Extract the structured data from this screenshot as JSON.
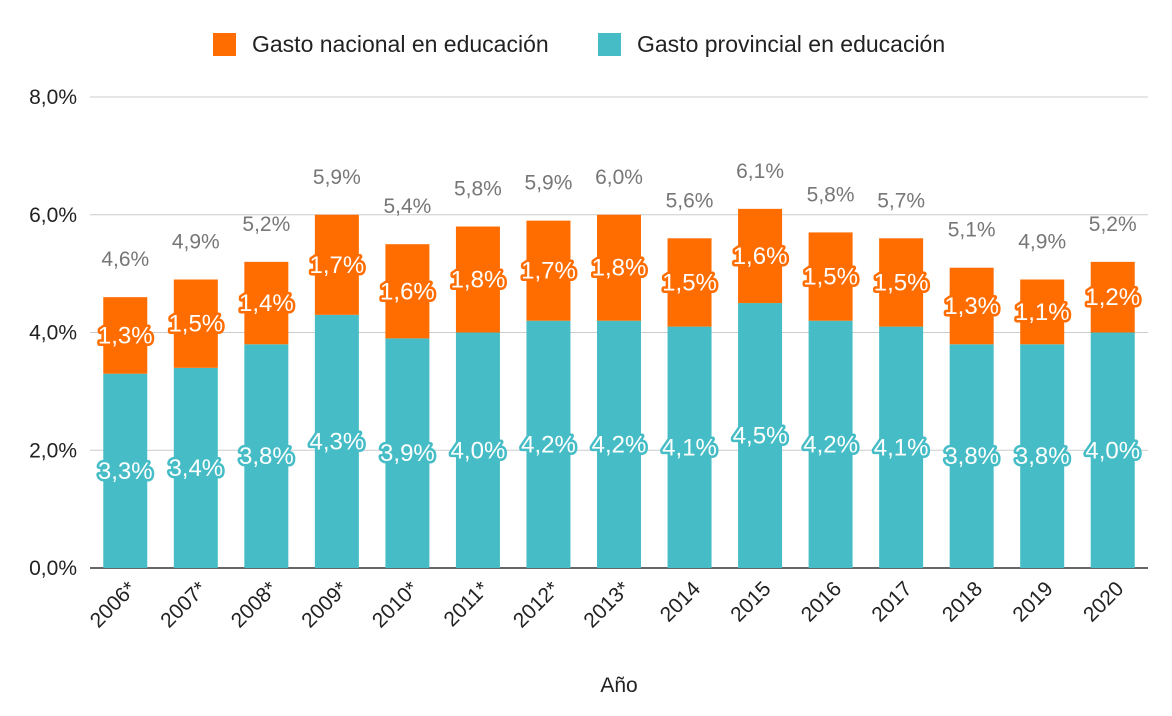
{
  "chart_data": {
    "type": "bar",
    "stacked": true,
    "categories": [
      "2006*",
      "2007*",
      "2008*",
      "2009*",
      "2010*",
      "2011*",
      "2012*",
      "2013*",
      "2014",
      "2015",
      "2016",
      "2017",
      "2018",
      "2019",
      "2020"
    ],
    "series": [
      {
        "name": "Gasto provincial en educación",
        "color": "#46bdc6",
        "values": [
          3.3,
          3.4,
          3.8,
          4.3,
          3.9,
          4.0,
          4.2,
          4.2,
          4.1,
          4.5,
          4.2,
          4.1,
          3.8,
          3.8,
          4.0
        ],
        "labels": [
          "3,3%",
          "3,4%",
          "3,8%",
          "4,3%",
          "3,9%",
          "4,0%",
          "4,2%",
          "4,2%",
          "4,1%",
          "4,5%",
          "4,2%",
          "4,1%",
          "3,8%",
          "3,8%",
          "4,0%"
        ]
      },
      {
        "name": "Gasto nacional en educación",
        "color": "#ff6d01",
        "values": [
          1.3,
          1.5,
          1.4,
          1.7,
          1.6,
          1.8,
          1.7,
          1.8,
          1.5,
          1.6,
          1.5,
          1.5,
          1.3,
          1.1,
          1.2
        ],
        "labels": [
          "1,3%",
          "1,5%",
          "1,4%",
          "1,7%",
          "1,6%",
          "1,8%",
          "1,7%",
          "1,8%",
          "1,5%",
          "1,6%",
          "1,5%",
          "1,5%",
          "1,3%",
          "1,1%",
          "1,2%"
        ]
      }
    ],
    "totals": [
      "4,6%",
      "4,9%",
      "5,2%",
      "5,9%",
      "5,4%",
      "5,8%",
      "5,9%",
      "6,0%",
      "5,6%",
      "6,1%",
      "5,8%",
      "5,7%",
      "5,1%",
      "4,9%",
      "5,2%"
    ],
    "legend": [
      "Gasto nacional en educación",
      "Gasto provincial en educación"
    ],
    "legend_position": "top-center",
    "xlabel": "Año",
    "ylabel": "",
    "ylim": [
      0,
      8
    ],
    "yticks": [
      "0,0%",
      "2,0%",
      "4,0%",
      "6,0%",
      "8,0%"
    ],
    "grid": true
  }
}
